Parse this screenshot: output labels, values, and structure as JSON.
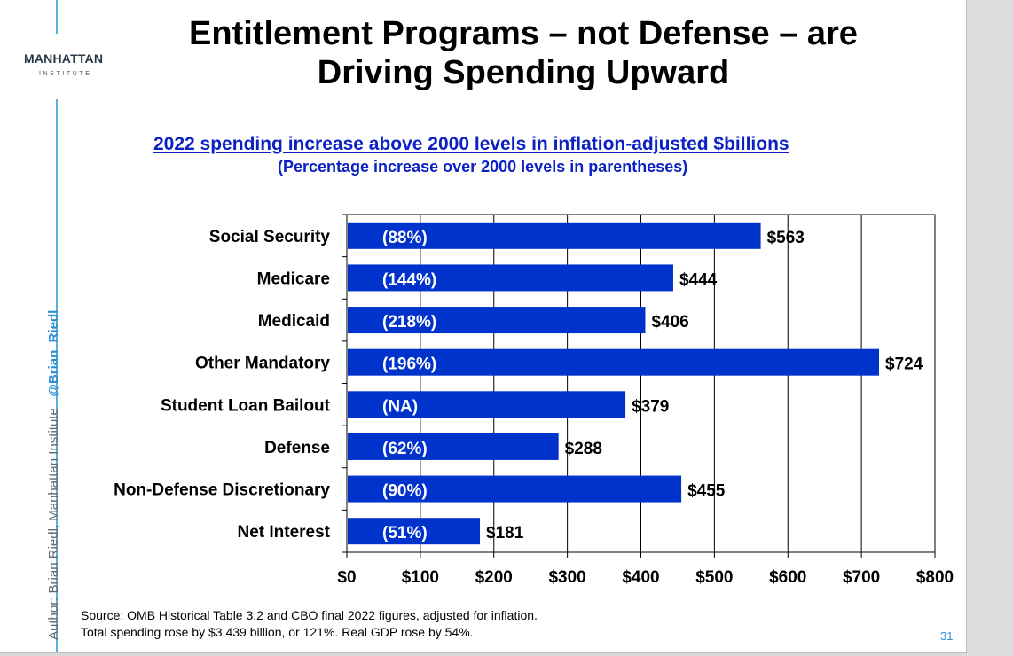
{
  "slide": {
    "title_line1": "Entitlement Programs – not Defense – are",
    "title_line2": "Driving Spending Upward",
    "logo_main": "MANHATTAN",
    "logo_sub": "INSTITUTE",
    "side_author": "Author: Brian Riedl, Manhattan Institute",
    "side_handle": "@Brian_Riedl",
    "source_line1": "Source: OMB Historical Table 3.2 and CBO final 2022 figures, adjusted for inflation.",
    "source_line2": "Total spending rose by $3,439 billion, or 121%. Real GDP rose by 54%.",
    "page_number": "31"
  },
  "chart_data": {
    "type": "bar",
    "orientation": "horizontal",
    "title": "2022 spending increase above 2000 levels in inflation-adjusted $billions",
    "subtitle": "(Percentage increase over 2000 levels in parentheses)",
    "categories": [
      "Social Security",
      "Medicare",
      "Medicaid",
      "Other Mandatory",
      "Student Loan Bailout",
      "Defense",
      "Non-Defense Discretionary",
      "Net Interest"
    ],
    "values": [
      563,
      444,
      406,
      724,
      379,
      288,
      455,
      181
    ],
    "value_labels": [
      "$563",
      "$444",
      "$406",
      "$724",
      "$379",
      "$288",
      "$455",
      "$181"
    ],
    "pct_labels": [
      "(88%)",
      "(144%)",
      "(218%)",
      "(196%)",
      "(NA)",
      "(62%)",
      "(90%)",
      "(51%)"
    ],
    "xlim": [
      0,
      800
    ],
    "xticks": [
      0,
      100,
      200,
      300,
      400,
      500,
      600,
      700,
      800
    ],
    "xtick_labels": [
      "$0",
      "$100",
      "$200",
      "$300",
      "$400",
      "$500",
      "$600",
      "$700",
      "$800"
    ],
    "grid": "vertical",
    "bar_color": "#0033cc"
  }
}
